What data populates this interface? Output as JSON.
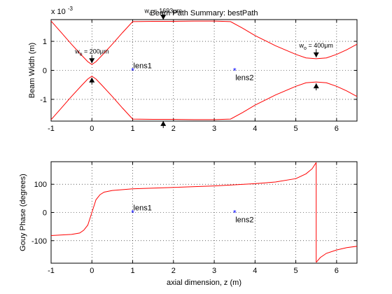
{
  "chart_data": [
    {
      "type": "line",
      "title": "Beam Path Summary: bestPath",
      "ylabel": "Beam Width (m)",
      "y_exponent": "x 10",
      "y_exponent_power": "-3",
      "xlim": [
        -1,
        6.5
      ],
      "ylim": [
        -1.75,
        1.75
      ],
      "xticks": [
        -1,
        0,
        1,
        2,
        3,
        4,
        5,
        6
      ],
      "yticks": [
        -1,
        0,
        1
      ],
      "grid": true,
      "series": [
        {
          "color": "#ff0000",
          "x": [
            -1,
            -0.75,
            -0.5,
            -0.25,
            -0.1,
            0,
            0.1,
            0.25,
            0.5,
            0.75,
            1,
            1.5,
            2,
            2.5,
            3,
            3.4,
            3.7,
            4,
            4.5,
            5,
            5.25,
            5.5,
            5.75,
            6,
            6.25,
            6.5
          ],
          "upper": [
            1.7,
            1.3,
            0.9,
            0.52,
            0.3,
            0.2,
            0.3,
            0.52,
            0.9,
            1.3,
            1.68,
            1.69,
            1.69,
            1.7,
            1.7,
            1.68,
            1.45,
            1.2,
            0.85,
            0.55,
            0.43,
            0.4,
            0.43,
            0.55,
            0.71,
            0.9
          ]
        }
      ],
      "markers": [
        {
          "label": "lens1",
          "x": 1,
          "y": 0
        },
        {
          "label": "lens2",
          "x": 3.5,
          "y": 0
        }
      ],
      "waist_annotations": [
        {
          "prefix": "w",
          "sub": "o",
          "value": " = 200μm",
          "x": 0
        },
        {
          "prefix": "w",
          "sub": "o",
          "value": " = 1693μm",
          "x": 1.75
        },
        {
          "prefix": "w",
          "sub": "o",
          "value": " = 400μm",
          "x": 5.5
        }
      ]
    },
    {
      "type": "line",
      "ylabel": "Gouy Phase (degrees)",
      "xlabel": "axial dimension, z (m)",
      "xlim": [
        -1,
        6.5
      ],
      "ylim": [
        -180,
        180
      ],
      "xticks": [
        -1,
        0,
        1,
        2,
        3,
        4,
        5,
        6
      ],
      "yticks": [
        -100,
        0,
        100
      ],
      "grid": true,
      "series": [
        {
          "color": "#ff0000",
          "x": [
            -1,
            -0.5,
            -0.3,
            -0.2,
            -0.1,
            0,
            0.1,
            0.2,
            0.3,
            0.5,
            1,
            2,
            3,
            4,
            4.5,
            5,
            5.25,
            5.4,
            5.5
          ],
          "y": [
            -82,
            -78,
            -73,
            -63,
            -45,
            0,
            45,
            63,
            72,
            78,
            84,
            89,
            94,
            102,
            108,
            120,
            137,
            155,
            177
          ]
        },
        {
          "color": "#ff0000",
          "x": [
            5.5,
            5.6,
            5.75,
            6,
            6.25,
            6.5
          ],
          "y": [
            -177,
            -160,
            -145,
            -133,
            -125,
            -120
          ]
        }
      ],
      "markers": [
        {
          "label": "lens1",
          "x": 1,
          "y": 0
        },
        {
          "label": "lens2",
          "x": 3.5,
          "y": 0
        }
      ]
    }
  ]
}
